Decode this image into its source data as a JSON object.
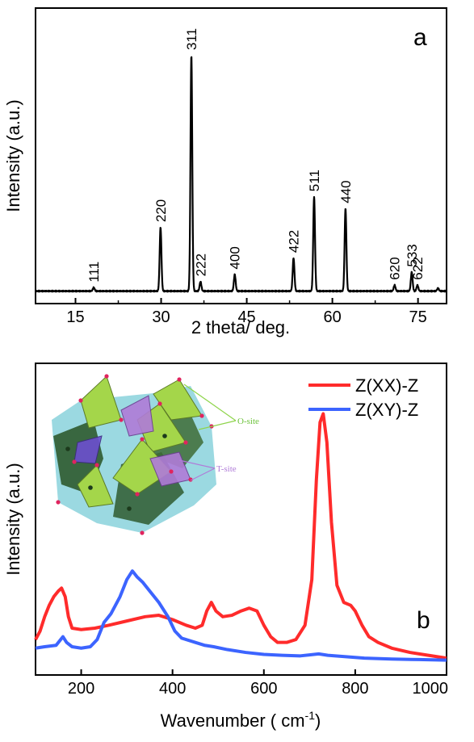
{
  "chart_data": [
    {
      "type": "line",
      "panel_label": "a",
      "xlabel": "2 theta/ deg.",
      "ylabel": "Intensity (a.u.)",
      "xlim": [
        8,
        80
      ],
      "ylim": [
        0,
        100
      ],
      "xticks": [
        15,
        30,
        45,
        60,
        75
      ],
      "yticks_shown": false,
      "peaks": [
        {
          "label": "111",
          "x": 18.2,
          "y": 1.5
        },
        {
          "label": "220",
          "x": 29.9,
          "y": 27
        },
        {
          "label": "311",
          "x": 35.3,
          "y": 100
        },
        {
          "label": "222",
          "x": 36.9,
          "y": 4
        },
        {
          "label": "400",
          "x": 42.9,
          "y": 7
        },
        {
          "label": "422",
          "x": 53.2,
          "y": 14
        },
        {
          "label": "511",
          "x": 56.8,
          "y": 40
        },
        {
          "label": "440",
          "x": 62.3,
          "y": 35
        },
        {
          "label": "620",
          "x": 70.9,
          "y": 2.5
        },
        {
          "label": "533",
          "x": 73.9,
          "y": 8
        },
        {
          "label": "622",
          "x": 74.9,
          "y": 2.5
        },
        {
          "x": 78.5,
          "y": 1.2
        }
      ]
    },
    {
      "type": "line",
      "panel_label": "b",
      "xlabel": "Wavenumber ( cm",
      "xlabel_sup": "-1",
      "xlabel_end": ")",
      "ylabel": "Intensity (a.u.)",
      "xlim": [
        100,
        1000
      ],
      "ylim": [
        0,
        100
      ],
      "xticks": [
        200,
        400,
        600,
        800,
        1000
      ],
      "yticks_shown": false,
      "legend_position": "top-right",
      "series": [
        {
          "name": "Z(XX)-Z",
          "color": "#ff2b2b",
          "points": [
            [
              100,
              9
            ],
            [
              110,
              12
            ],
            [
              120,
              17
            ],
            [
              130,
              21
            ],
            [
              140,
              24
            ],
            [
              150,
              26
            ],
            [
              157,
              27
            ],
            [
              165,
              24
            ],
            [
              172,
              17
            ],
            [
              180,
              13
            ],
            [
              200,
              12.5
            ],
            [
              230,
              13
            ],
            [
              260,
              14
            ],
            [
              300,
              15.5
            ],
            [
              340,
              17
            ],
            [
              370,
              17.5
            ],
            [
              400,
              16
            ],
            [
              430,
              14
            ],
            [
              450,
              13
            ],
            [
              465,
              14
            ],
            [
              475,
              19
            ],
            [
              485,
              22
            ],
            [
              495,
              19
            ],
            [
              510,
              17
            ],
            [
              530,
              17.5
            ],
            [
              550,
              19
            ],
            [
              568,
              20
            ],
            [
              585,
              19
            ],
            [
              600,
              14
            ],
            [
              615,
              10
            ],
            [
              630,
              8
            ],
            [
              650,
              8
            ],
            [
              670,
              9
            ],
            [
              690,
              14
            ],
            [
              705,
              30
            ],
            [
              715,
              65
            ],
            [
              723,
              85
            ],
            [
              730,
              88
            ],
            [
              738,
              78
            ],
            [
              748,
              50
            ],
            [
              760,
              28
            ],
            [
              775,
              22
            ],
            [
              790,
              21
            ],
            [
              800,
              19
            ],
            [
              815,
              14
            ],
            [
              830,
              10
            ],
            [
              850,
              8
            ],
            [
              880,
              6
            ],
            [
              920,
              4.5
            ],
            [
              960,
              3.5
            ],
            [
              1000,
              2.5
            ]
          ]
        },
        {
          "name": "Z(XY)-Z",
          "color": "#3c64ff",
          "points": [
            [
              100,
              6
            ],
            [
              120,
              6.5
            ],
            [
              145,
              7
            ],
            [
              160,
              10
            ],
            [
              168,
              8
            ],
            [
              180,
              6.5
            ],
            [
              200,
              6
            ],
            [
              220,
              6.5
            ],
            [
              235,
              9
            ],
            [
              250,
              15
            ],
            [
              265,
              18
            ],
            [
              285,
              24
            ],
            [
              300,
              30
            ],
            [
              312,
              33
            ],
            [
              322,
              31
            ],
            [
              335,
              29
            ],
            [
              350,
              26
            ],
            [
              370,
              22
            ],
            [
              390,
              17
            ],
            [
              405,
              12
            ],
            [
              420,
              9.5
            ],
            [
              450,
              8
            ],
            [
              470,
              7
            ],
            [
              490,
              6.5
            ],
            [
              520,
              5.5
            ],
            [
              560,
              4.5
            ],
            [
              600,
              3.8
            ],
            [
              640,
              3.5
            ],
            [
              680,
              3.3
            ],
            [
              720,
              4
            ],
            [
              740,
              3.5
            ],
            [
              780,
              3
            ],
            [
              820,
              2.5
            ],
            [
              880,
              2.2
            ],
            [
              940,
              2
            ],
            [
              1000,
              1.8
            ]
          ]
        }
      ],
      "inset": {
        "type": "crystal-structure-illustration",
        "labels": {
          "o_site": "O-site",
          "t_site": "T-site"
        },
        "o_color": "#a4d64a",
        "t_color": "#b07bd8",
        "bg_color": "#49b9c8"
      }
    }
  ]
}
